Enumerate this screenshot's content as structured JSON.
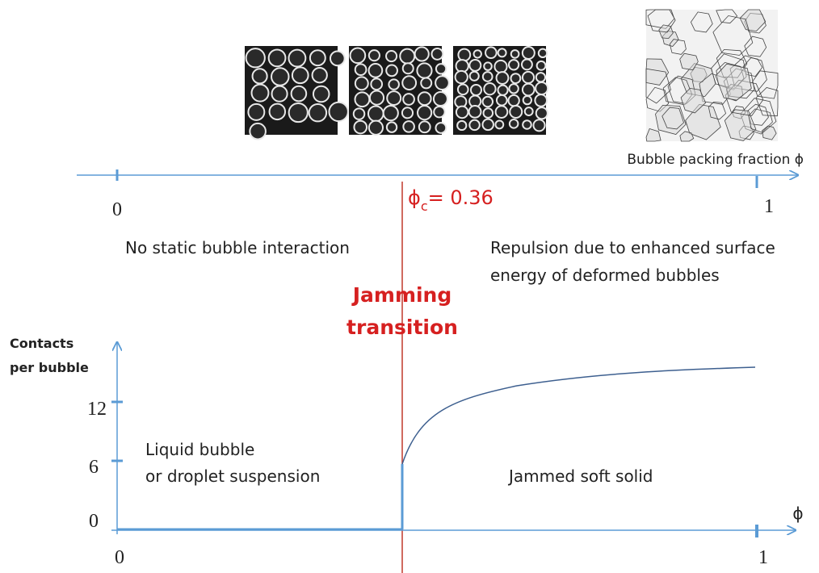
{
  "top_axis": {
    "title": "Bubble packing fraction ϕ",
    "start_label": "0",
    "end_label": "1"
  },
  "critical": {
    "symbol": "ϕ",
    "subscript": "c",
    "value": "= 0.36"
  },
  "regions_top": {
    "left": "No static bubble interaction",
    "right_line1": "Repulsion due to enhanced surface",
    "right_line2": "energy of deformed bubbles"
  },
  "transition": {
    "line1": "Jamming",
    "line2": "transition"
  },
  "lower_plot": {
    "y_title_line1": "Contacts",
    "y_title_line2": "per bubble",
    "y_ticks": [
      "12",
      "6",
      "0"
    ],
    "x_start": "0",
    "x_end": "1",
    "x_title": "ϕ",
    "left_region_line1": "Liquid bubble",
    "left_region_line2": "or droplet suspension",
    "right_region": "Jammed soft solid"
  }
}
